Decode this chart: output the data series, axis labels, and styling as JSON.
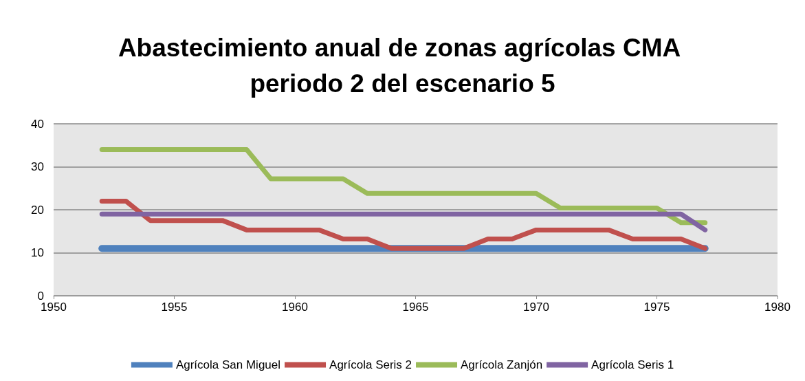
{
  "chart_data": {
    "type": "line",
    "title": "Abastecimiento anual de zonas agrícolas CMA periodo 2 del escenario 5",
    "x": [
      1952,
      1953,
      1954,
      1955,
      1956,
      1957,
      1958,
      1959,
      1960,
      1961,
      1962,
      1963,
      1964,
      1965,
      1966,
      1967,
      1968,
      1969,
      1970,
      1971,
      1972,
      1973,
      1974,
      1975,
      1976,
      1977
    ],
    "series": [
      {
        "name": "Agrícola San Miguel",
        "color": "#4f81bd",
        "values": [
          11,
          11,
          11,
          11,
          11,
          11,
          11,
          11,
          11,
          11,
          11,
          11,
          11,
          11,
          11,
          11,
          11,
          11,
          11,
          11,
          11,
          11,
          11,
          11,
          11,
          11
        ]
      },
      {
        "name": "Agrícola Seris 2",
        "color": "#c0504d",
        "values": [
          22,
          22,
          17.5,
          17.5,
          17.5,
          17.5,
          15.3,
          15.3,
          15.3,
          15.3,
          13.2,
          13.2,
          11,
          11,
          11,
          11,
          13.2,
          13.2,
          15.3,
          15.3,
          15.3,
          15.3,
          13.2,
          13.2,
          13.2,
          11
        ]
      },
      {
        "name": "Agrícola Zanjón",
        "color": "#9bbb59",
        "values": [
          34,
          34,
          34,
          34,
          34,
          34,
          34,
          27.2,
          27.2,
          27.2,
          27.2,
          23.8,
          23.8,
          23.8,
          23.8,
          23.8,
          23.8,
          23.8,
          23.8,
          20.4,
          20.4,
          20.4,
          20.4,
          20.4,
          17,
          17
        ]
      },
      {
        "name": "Agrícola Seris 1",
        "color": "#8064a2",
        "values": [
          19,
          19,
          19,
          19,
          19,
          19,
          19,
          19,
          19,
          19,
          19,
          19,
          19,
          19,
          19,
          19,
          19,
          19,
          19,
          19,
          19,
          19,
          19,
          19,
          19,
          15.3
        ]
      }
    ],
    "xlim": [
      1950,
      1980
    ],
    "xticks": [
      1950,
      1955,
      1960,
      1965,
      1970,
      1975,
      1980
    ],
    "ylim": [
      0,
      40
    ],
    "yticks": [
      0,
      10,
      20,
      30,
      40
    ],
    "grid": "y",
    "legend": "bottom",
    "marker": "none",
    "line_style": "solid"
  }
}
